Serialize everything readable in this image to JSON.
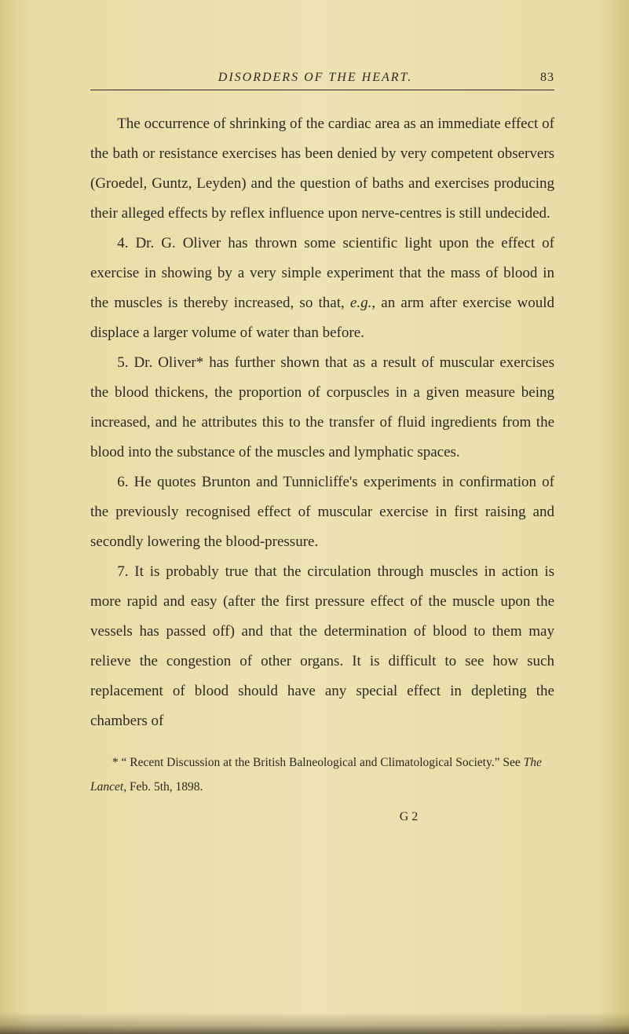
{
  "header": {
    "running_title": "DISORDERS OF THE HEART.",
    "page_number": "83"
  },
  "paragraphs": {
    "p1": "The occurrence of shrinking of the cardiac area as an immediate effect of the bath or resistance exercises has been denied by very competent observers (Groedel, Guntz, Leyden) and the question of baths and exercises producing their alleged effects by reflex influence upon nerve-centres is still undecided.",
    "p2_pre": "4. Dr. G. Oliver has thrown some scientific light upon the effect of exercise in showing by a very simple experiment that the mass of blood in the muscles is thereby increased, so that, ",
    "p2_eg": "e.g.",
    "p2_post": ", an arm after exercise would displace a larger volume of water than before.",
    "p3": "5. Dr. Oliver* has further shown that as a result of muscular exercises the blood thickens, the proportion of corpuscles in a given measure being increased, and he attributes this to the transfer of fluid ingredients from the blood into the substance of the muscles and lymphatic spaces.",
    "p4": "6. He quotes Brunton and Tunnicliffe's experiments in confirmation of the previously recognised effect of muscular exercise in first raising and secondly lowering the blood-pressure.",
    "p5": "7. It is probably true that the circulation through muscles in action is more rapid and easy (after the first pressure effect of the muscle upon the vessels has passed off) and that the determination of blood to them may relieve the congestion of other organs. It is difficult to see how such replacement of blood should have any special effect in depleting the chambers of"
  },
  "footnote": {
    "pre": "* “ Recent Discussion at the British Balneological and Climatological Society.”  See ",
    "journal": "The Lancet",
    "post": ", Feb. 5th, 1898."
  },
  "signature": "G 2"
}
